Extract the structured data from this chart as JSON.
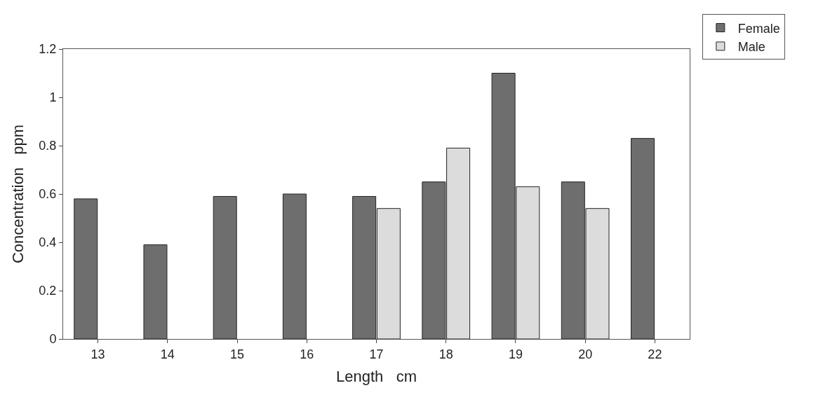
{
  "chart_data": {
    "type": "bar",
    "xlabel": "Length   cm",
    "ylabel": "Concentration   ppm",
    "categories": [
      "13",
      "14",
      "15",
      "16",
      "17",
      "18",
      "19",
      "20",
      "22"
    ],
    "series": [
      {
        "name": "Female",
        "color": "#6e6e6e",
        "values": [
          0.58,
          0.39,
          0.59,
          0.6,
          0.59,
          0.65,
          1.1,
          0.65,
          0.83
        ]
      },
      {
        "name": "Male",
        "color": "#dcdcdc",
        "values": [
          null,
          null,
          null,
          null,
          0.54,
          0.79,
          0.63,
          0.54,
          null
        ]
      }
    ],
    "ylim": [
      0,
      1.2
    ],
    "yticks": [
      0,
      0.2,
      0.4,
      0.6,
      0.8,
      1,
      1.2
    ],
    "legend": "top right"
  }
}
